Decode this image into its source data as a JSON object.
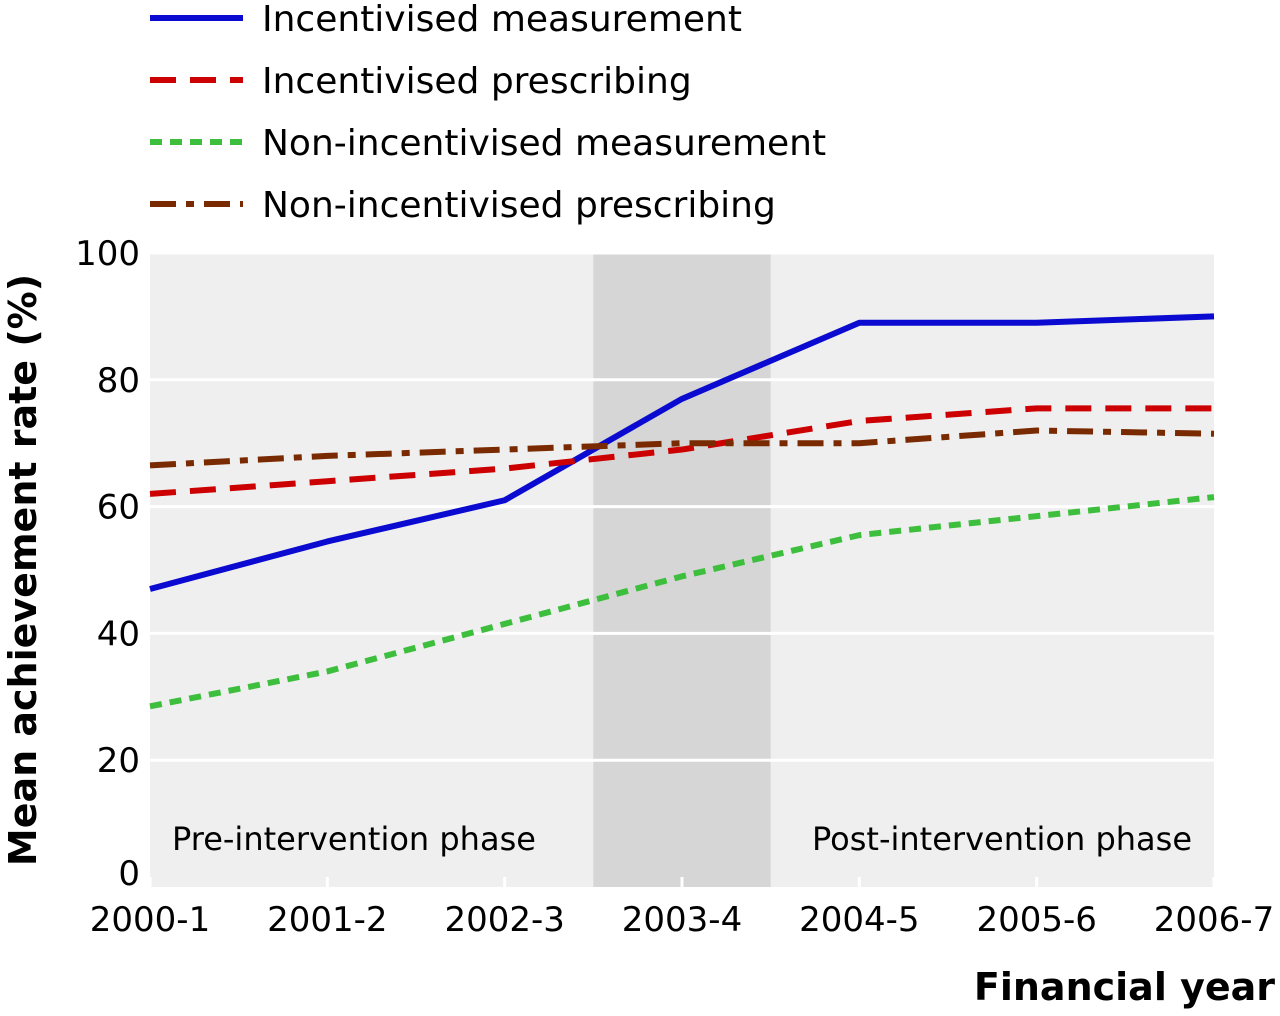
{
  "chart_data": {
    "type": "line",
    "xlabel": "Financial year",
    "ylabel": "Mean achievement rate (%)",
    "ylim": [
      0,
      100
    ],
    "yticks": [
      0,
      20,
      40,
      60,
      80,
      100
    ],
    "categories": [
      "2000-1",
      "2001-2",
      "2002-3",
      "2003-4",
      "2004-5",
      "2005-6",
      "2006-7"
    ],
    "grid": true,
    "legend_position": "top-left",
    "background_color": "#efefef",
    "gridline_color": "#ffffff",
    "shaded_region": {
      "from": 2.5,
      "to": 3.5,
      "color": "#d6d6d6"
    },
    "annotations": [
      {
        "text": "Pre-intervention phase",
        "near": "bottom-left"
      },
      {
        "text": "Post-intervention phase",
        "near": "bottom-right"
      }
    ],
    "series": [
      {
        "name": "Incentivised measurement",
        "color": "#0a0ad0",
        "style": "solid",
        "values": [
          47,
          54.5,
          61,
          77,
          89,
          89,
          90
        ]
      },
      {
        "name": "Incentivised prescribing",
        "color": "#cc0000",
        "style": "dashed",
        "values": [
          62,
          64,
          66,
          69,
          73.5,
          75.5,
          75.5
        ]
      },
      {
        "name": "Non-incentivised measurement",
        "color": "#3dbf3d",
        "style": "dotted",
        "values": [
          28.5,
          34,
          41.5,
          49,
          55.5,
          58.5,
          61.5
        ]
      },
      {
        "name": "Non-incentivised prescribing",
        "color": "#7a2a00",
        "style": "dashdot",
        "values": [
          66.5,
          68,
          69,
          70,
          70,
          72,
          71.5
        ]
      }
    ]
  }
}
